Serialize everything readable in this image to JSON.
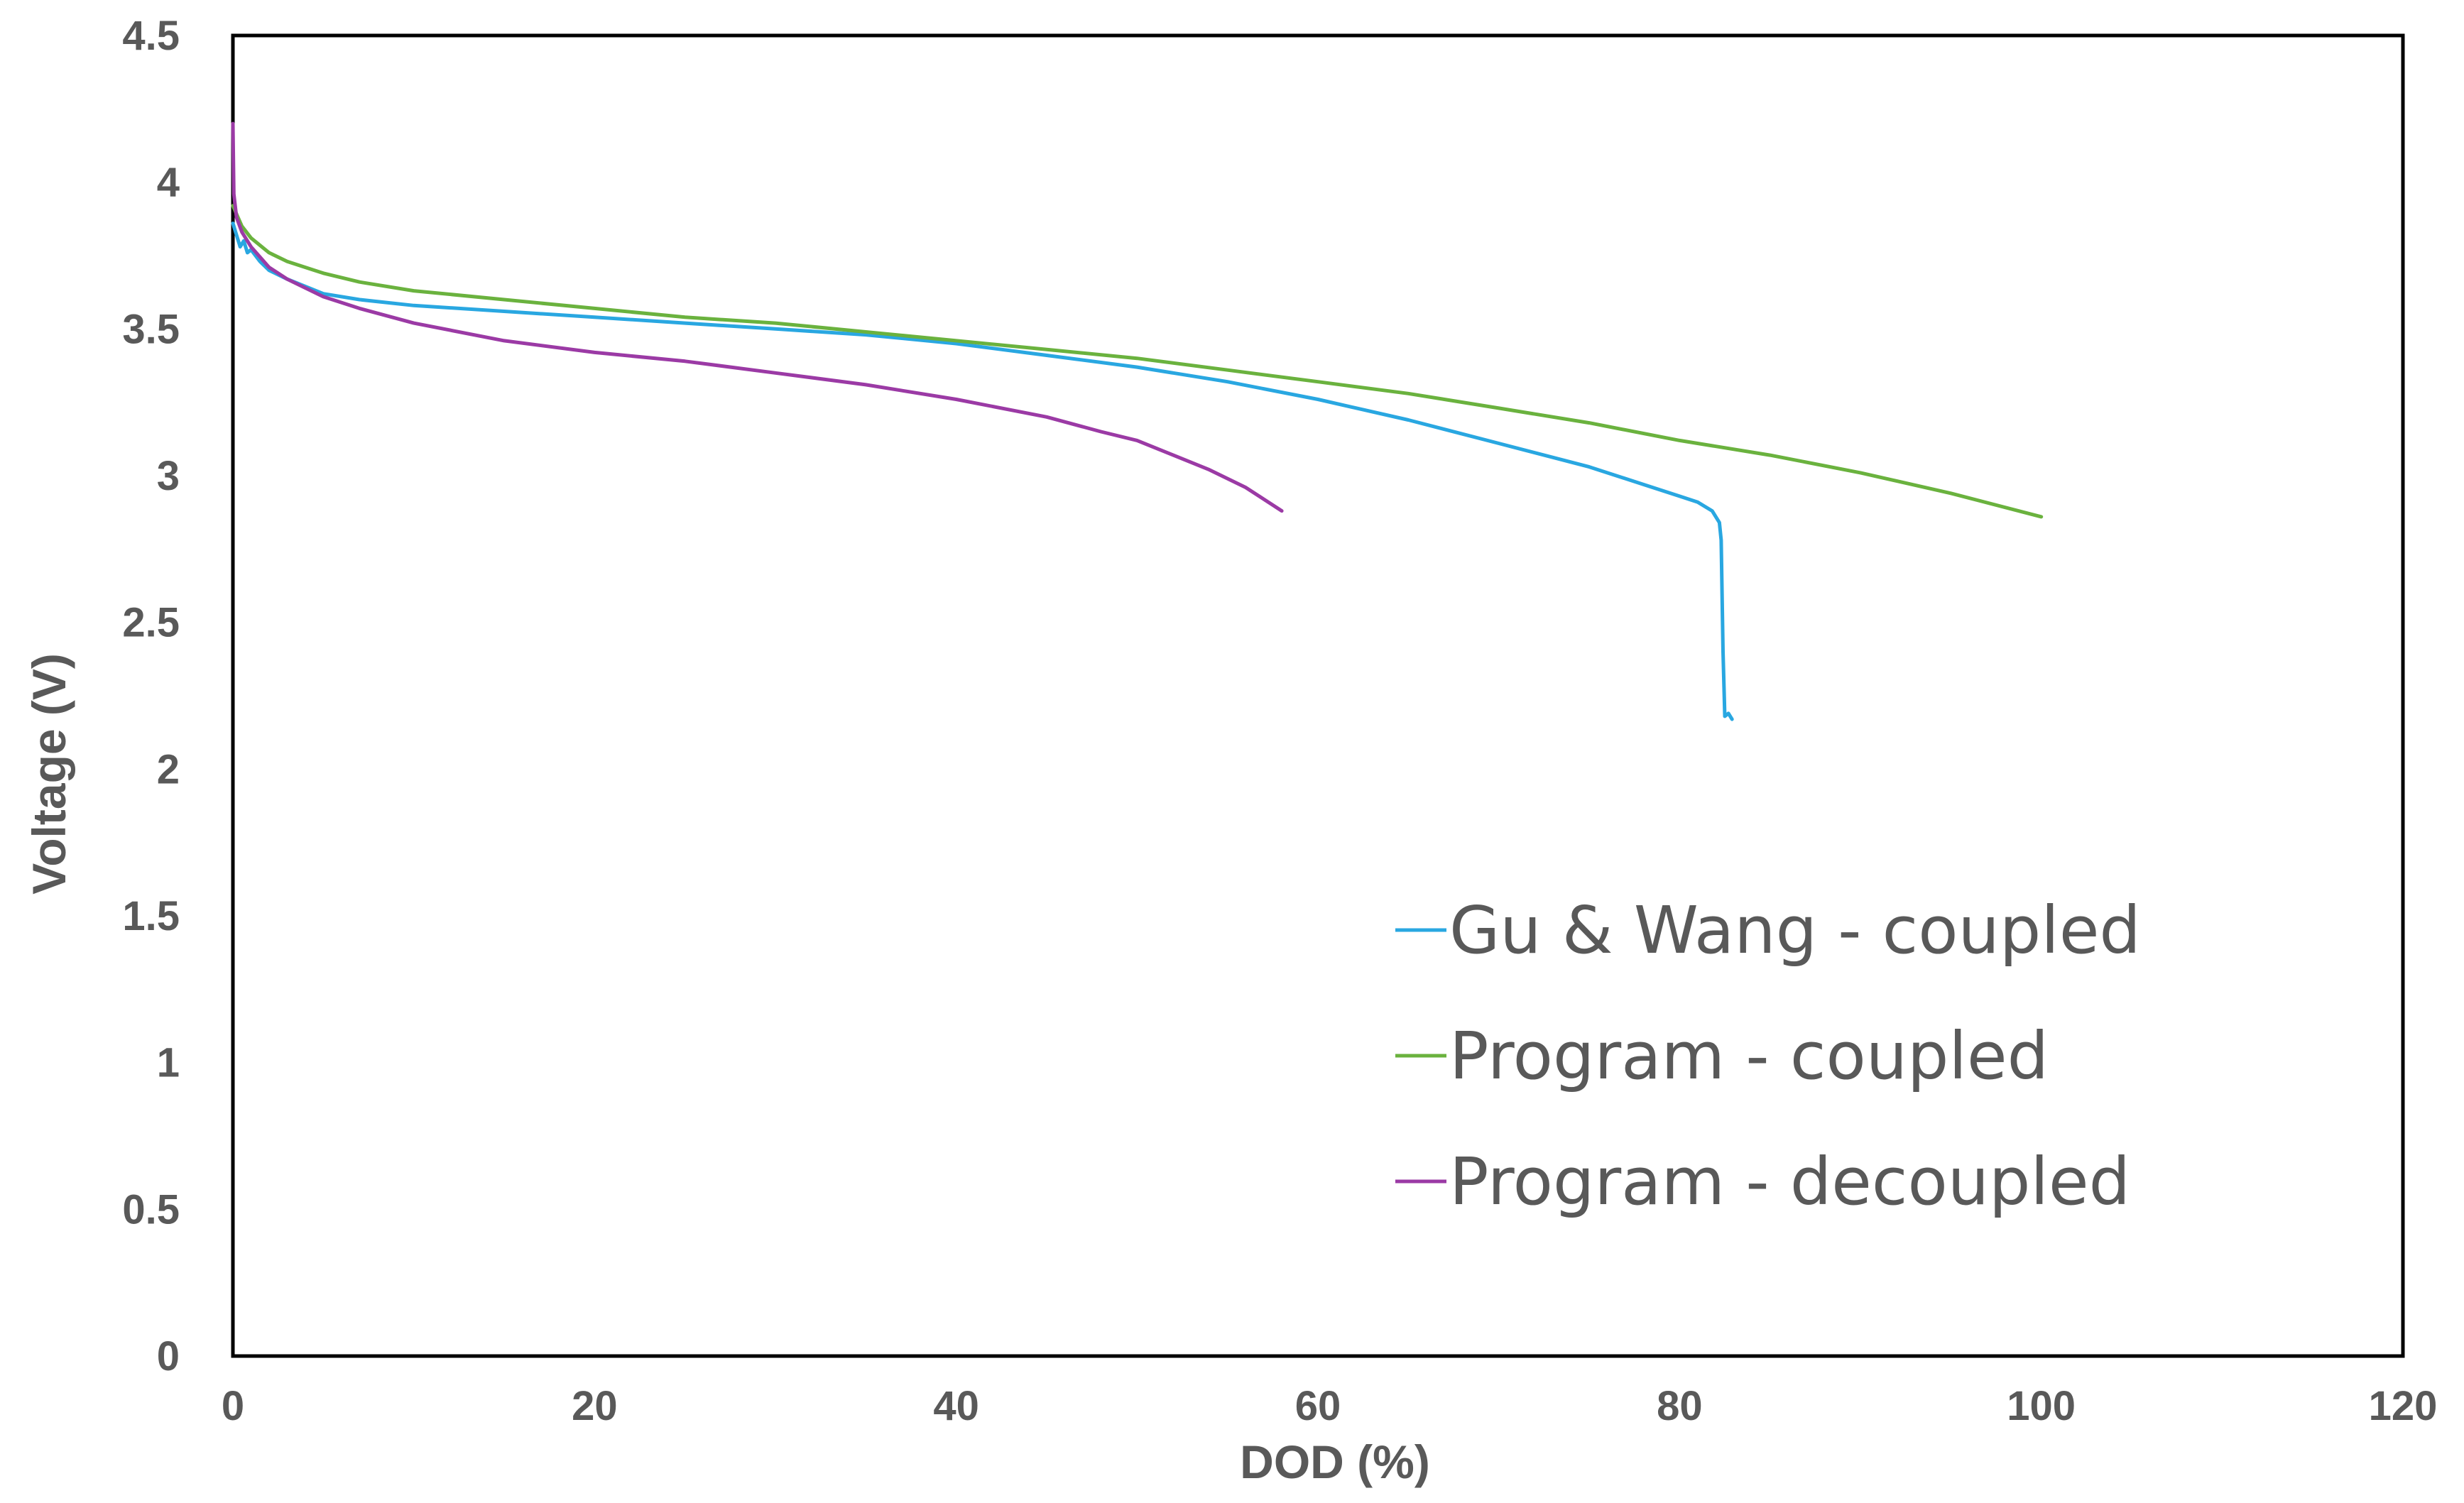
{
  "chart_data": {
    "type": "line",
    "title": "",
    "xlabel": "DOD (%)",
    "ylabel": "Voltage (V)",
    "xlim": [
      0,
      120
    ],
    "ylim": [
      0,
      4.5
    ],
    "xticks": [
      "0",
      "20",
      "40",
      "60",
      "80",
      "100",
      "120"
    ],
    "yticks": [
      "0",
      "0.5",
      "1",
      "1.5",
      "2",
      "2.5",
      "3",
      "3.5",
      "4",
      "4.5"
    ],
    "grid": false,
    "legend_position": "lower-right",
    "series": [
      {
        "name": "Gu & Wang - coupled",
        "color": "#29a7e1",
        "points": [
          [
            0,
            3.86
          ],
          [
            0.2,
            3.82
          ],
          [
            0.4,
            3.78
          ],
          [
            0.6,
            3.8
          ],
          [
            0.8,
            3.76
          ],
          [
            1.0,
            3.77
          ],
          [
            1.5,
            3.73
          ],
          [
            2,
            3.7
          ],
          [
            3,
            3.67
          ],
          [
            5,
            3.62
          ],
          [
            7,
            3.6
          ],
          [
            10,
            3.58
          ],
          [
            15,
            3.56
          ],
          [
            20,
            3.54
          ],
          [
            25,
            3.52
          ],
          [
            30,
            3.5
          ],
          [
            35,
            3.48
          ],
          [
            40,
            3.45
          ],
          [
            45,
            3.41
          ],
          [
            50,
            3.37
          ],
          [
            55,
            3.32
          ],
          [
            60,
            3.26
          ],
          [
            65,
            3.19
          ],
          [
            70,
            3.11
          ],
          [
            75,
            3.03
          ],
          [
            78,
            2.97
          ],
          [
            80,
            2.93
          ],
          [
            81,
            2.91
          ],
          [
            81.8,
            2.88
          ],
          [
            82.2,
            2.84
          ],
          [
            82.3,
            2.78
          ],
          [
            82.4,
            2.4
          ],
          [
            82.5,
            2.18
          ],
          [
            82.7,
            2.19
          ],
          [
            82.9,
            2.17
          ]
        ]
      },
      {
        "name": "Program - coupled",
        "color": "#6ab23e",
        "points": [
          [
            0,
            3.92
          ],
          [
            0.5,
            3.85
          ],
          [
            1,
            3.81
          ],
          [
            2,
            3.76
          ],
          [
            3,
            3.73
          ],
          [
            5,
            3.69
          ],
          [
            7,
            3.66
          ],
          [
            10,
            3.63
          ],
          [
            15,
            3.6
          ],
          [
            20,
            3.57
          ],
          [
            25,
            3.54
          ],
          [
            30,
            3.52
          ],
          [
            35,
            3.49
          ],
          [
            40,
            3.46
          ],
          [
            45,
            3.43
          ],
          [
            50,
            3.4
          ],
          [
            55,
            3.36
          ],
          [
            60,
            3.32
          ],
          [
            65,
            3.28
          ],
          [
            70,
            3.23
          ],
          [
            75,
            3.18
          ],
          [
            80,
            3.12
          ],
          [
            85,
            3.07
          ],
          [
            90,
            3.01
          ],
          [
            95,
            2.94
          ],
          [
            100,
            2.86
          ]
        ]
      },
      {
        "name": "Program - decoupled",
        "color": "#9b3aa5",
        "points": [
          [
            0,
            4.2
          ],
          [
            0.05,
            3.96
          ],
          [
            0.2,
            3.88
          ],
          [
            0.5,
            3.83
          ],
          [
            1,
            3.78
          ],
          [
            2,
            3.71
          ],
          [
            3,
            3.67
          ],
          [
            5,
            3.61
          ],
          [
            7,
            3.57
          ],
          [
            10,
            3.52
          ],
          [
            15,
            3.46
          ],
          [
            20,
            3.42
          ],
          [
            25,
            3.39
          ],
          [
            30,
            3.35
          ],
          [
            35,
            3.31
          ],
          [
            40,
            3.26
          ],
          [
            45,
            3.2
          ],
          [
            48,
            3.15
          ],
          [
            50,
            3.12
          ],
          [
            52,
            3.07
          ],
          [
            54,
            3.02
          ],
          [
            56,
            2.96
          ],
          [
            58,
            2.88
          ]
        ]
      }
    ]
  }
}
